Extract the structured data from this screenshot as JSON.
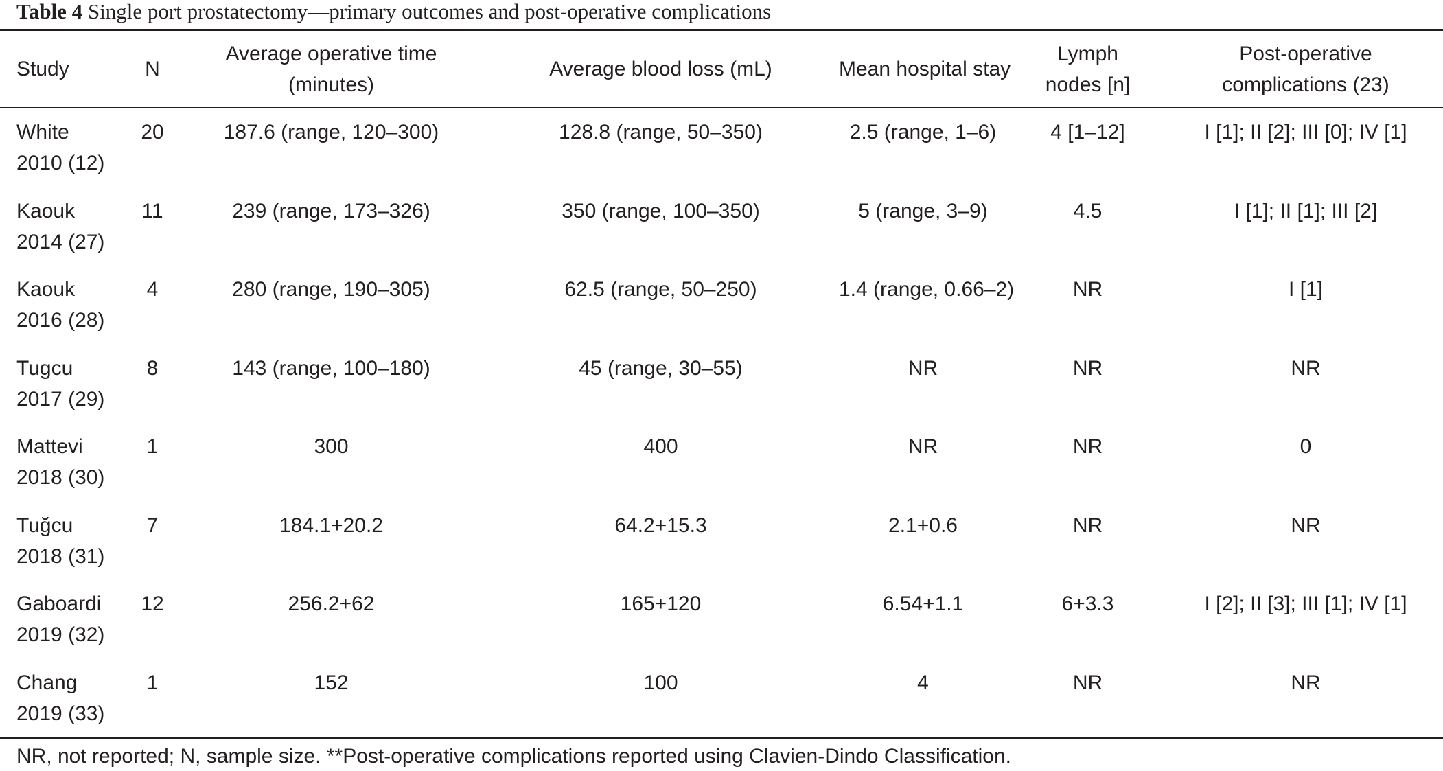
{
  "caption": {
    "label": "Table 4",
    "text": "Single port prostatectomy—primary outcomes and post-operative complications"
  },
  "columns": [
    [
      "Study"
    ],
    [
      "N"
    ],
    [
      "Average operative time",
      "(minutes)"
    ],
    [
      "Average blood loss (mL)"
    ],
    [
      "Mean hospital stay"
    ],
    [
      "Lymph",
      "nodes [n]"
    ],
    [
      "Post-operative",
      "complications (23)"
    ]
  ],
  "rows": [
    {
      "study": [
        "White",
        "2010 (12)"
      ],
      "n": "20",
      "op_time": "187.6 (range, 120–300)",
      "blood_loss": "128.8 (range, 50–350)",
      "stay": "2.5 (range, 1–6)",
      "nodes": "4 [1–12]",
      "complications": "I [1]; II [2]; III [0]; IV [1]"
    },
    {
      "study": [
        "Kaouk",
        "2014 (27)"
      ],
      "n": "11",
      "op_time": "239 (range, 173–326)",
      "blood_loss": "350 (range, 100–350)",
      "stay": "5 (range, 3–9)",
      "nodes": "4.5",
      "complications": "I [1]; II [1]; III [2]"
    },
    {
      "study": [
        "Kaouk",
        "2016 (28)"
      ],
      "n": "4",
      "op_time": "280 (range, 190–305)",
      "blood_loss": "62.5 (range, 50–250)",
      "stay": "1.4 (range, 0.66–2)",
      "nodes": "NR",
      "complications": "I [1]"
    },
    {
      "study": [
        "Tugcu",
        "2017 (29)"
      ],
      "n": "8",
      "op_time": "143 (range, 100–180)",
      "blood_loss": "45 (range, 30–55)",
      "stay": "NR",
      "nodes": "NR",
      "complications": "NR"
    },
    {
      "study": [
        "Mattevi",
        "2018 (30)"
      ],
      "n": "1",
      "op_time": "300",
      "blood_loss": "400",
      "stay": "NR",
      "nodes": "NR",
      "complications": "0"
    },
    {
      "study": [
        "Tuğcu",
        "2018 (31)"
      ],
      "n": "7",
      "op_time": "184.1+20.2",
      "blood_loss": "64.2+15.3",
      "stay": "2.1+0.6",
      "nodes": "NR",
      "complications": "NR"
    },
    {
      "study": [
        "Gaboardi",
        "2019 (32)"
      ],
      "n": "12",
      "op_time": "256.2+62",
      "blood_loss": "165+120",
      "stay": "6.54+1.1",
      "nodes": "6+3.3",
      "complications": "I [2]; II [3]; III [1]; IV [1]"
    },
    {
      "study": [
        "Chang",
        "2019 (33)"
      ],
      "n": "1",
      "op_time": "152",
      "blood_loss": "100",
      "stay": "4",
      "nodes": "NR",
      "complications": "NR"
    }
  ],
  "footnote": "NR, not reported; N, sample size. **Post-operative complications reported using Clavien-Dindo Classification."
}
